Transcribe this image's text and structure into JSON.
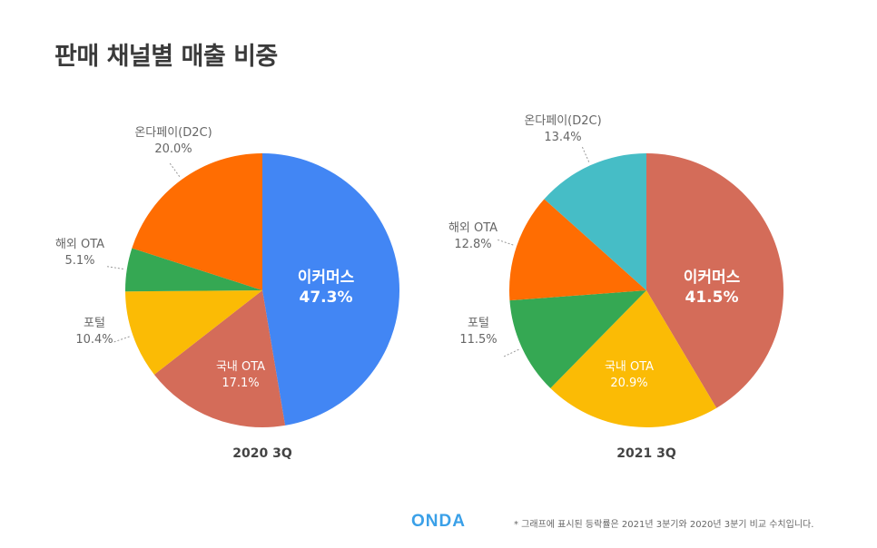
{
  "title": "판매 채널별 매출 비중",
  "brand": "ONDA",
  "footnote": "* 그래프에 표시된 등락률은 2021년 3분기와 2020년 3분기 비교 수치입니다.",
  "chart_data": [
    {
      "type": "pie",
      "title": "2020 3Q",
      "slices": [
        {
          "label": "이커머스",
          "value": 47.3,
          "display": "47.3%",
          "color": "#4286f4"
        },
        {
          "label": "국내 OTA",
          "value": 17.1,
          "display": "17.1%",
          "color": "#d46c59"
        },
        {
          "label": "포털",
          "value": 10.4,
          "display": "10.4%",
          "color": "#fbbb05"
        },
        {
          "label": "해외 OTA",
          "value": 5.1,
          "display": "5.1%",
          "color": "#35a853"
        },
        {
          "label": "온다페이(D2C)",
          "value": 20.0,
          "display": "20.0%",
          "color": "#ff6d02"
        }
      ]
    },
    {
      "type": "pie",
      "title": "2021 3Q",
      "slices": [
        {
          "label": "이커머스",
          "value": 41.5,
          "display": "41.5%",
          "color": "#d46c59"
        },
        {
          "label": "국내 OTA",
          "value": 20.9,
          "display": "20.9%",
          "color": "#fbbb05"
        },
        {
          "label": "포털",
          "value": 11.5,
          "display": "11.5%",
          "color": "#35a853"
        },
        {
          "label": "해외 OTA",
          "value": 12.8,
          "display": "12.8%",
          "color": "#ff6d02"
        },
        {
          "label": "온다페이(D2C)",
          "value": 13.4,
          "display": "13.4%",
          "color": "#46bdc6"
        }
      ]
    }
  ]
}
